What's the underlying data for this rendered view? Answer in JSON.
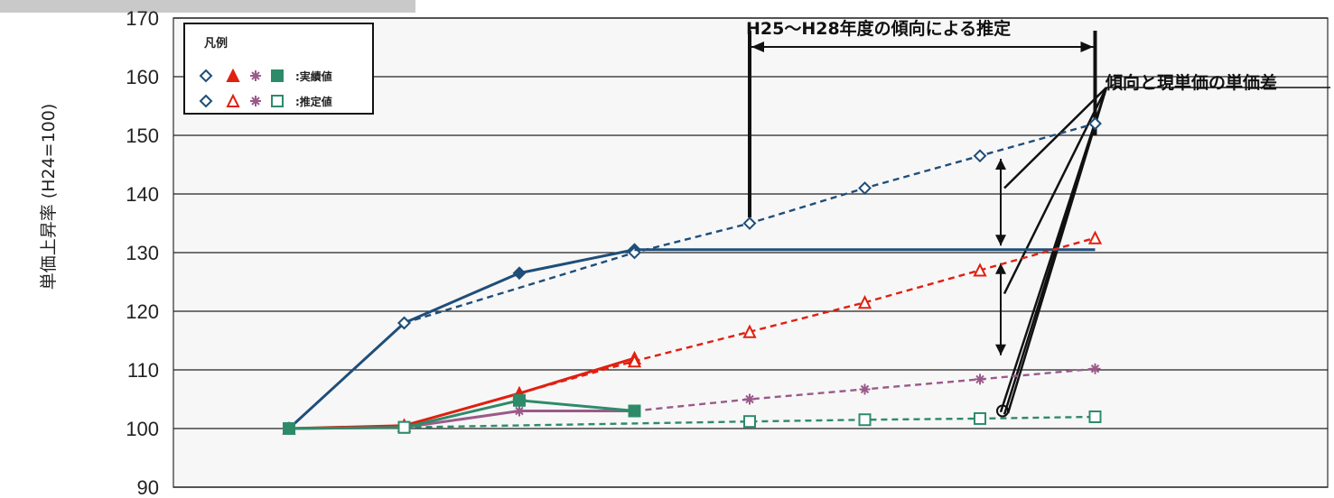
{
  "chart_data": {
    "type": "line",
    "ylabel": "単価上昇率 (H24=100)",
    "ylim": [
      90,
      170
    ],
    "yticks": [
      90,
      100,
      110,
      120,
      130,
      140,
      150,
      160,
      170
    ],
    "x": [
      0,
      1,
      2,
      3,
      4,
      5,
      6,
      7
    ],
    "grid": true,
    "legend": {
      "title": "凡例",
      "placement": "top-left",
      "rows": [
        {
          "text": ":実績値"
        },
        {
          "text": ":推定値"
        }
      ]
    },
    "series": [
      {
        "color": "#1f4e79",
        "style": "solid",
        "marker": "diamond-filled",
        "points": [
          [
            0,
            100
          ],
          [
            1,
            118
          ],
          [
            2,
            126.5
          ],
          [
            3,
            130.5
          ]
        ]
      },
      {
        "color": "#1f4e79",
        "style": "dashed",
        "marker": "diamond",
        "points": [
          [
            1,
            118
          ],
          [
            3,
            130
          ],
          [
            4,
            135
          ],
          [
            5,
            141
          ],
          [
            6,
            146.5
          ],
          [
            7,
            152
          ]
        ]
      },
      {
        "color": "#1f4e79",
        "style": "solid",
        "marker": "none",
        "points": [
          [
            3,
            130.5
          ],
          [
            7,
            130.5
          ]
        ]
      },
      {
        "color": "#e02010",
        "style": "solid",
        "marker": "triangle-filled",
        "points": [
          [
            0,
            100
          ],
          [
            1,
            100.5
          ],
          [
            2,
            106
          ],
          [
            3,
            112
          ]
        ]
      },
      {
        "color": "#e02010",
        "style": "dashed",
        "marker": "triangle",
        "points": [
          [
            1,
            100.5
          ],
          [
            3,
            111.5
          ],
          [
            4,
            116.5
          ],
          [
            5,
            121.5
          ],
          [
            6,
            127
          ],
          [
            7,
            132.5
          ]
        ]
      },
      {
        "color": "#9a5a8a",
        "style": "solid",
        "marker": "star",
        "points": [
          [
            0,
            100
          ],
          [
            1,
            100.2
          ],
          [
            2,
            103
          ],
          [
            3,
            103
          ]
        ]
      },
      {
        "color": "#9a5a8a",
        "style": "dashed",
        "marker": "star",
        "points": [
          [
            3,
            103
          ],
          [
            4,
            105
          ],
          [
            5,
            106.7
          ],
          [
            6,
            108.4
          ],
          [
            7,
            110.2
          ]
        ]
      },
      {
        "color": "#2e8b6a",
        "style": "solid",
        "marker": "square-filled",
        "points": [
          [
            0,
            100
          ],
          [
            1,
            100.2
          ],
          [
            2,
            104.8
          ],
          [
            3,
            103
          ]
        ]
      },
      {
        "color": "#2e8b6a",
        "style": "dashed",
        "marker": "square",
        "points": [
          [
            1,
            100.2
          ],
          [
            4,
            101.2
          ],
          [
            5,
            101.5
          ],
          [
            6,
            101.7
          ],
          [
            7,
            102
          ]
        ]
      }
    ],
    "annotations": {
      "range_label": "H25～H28年度の傾向による推定",
      "diff_label": "傾向と現単価の単価差"
    }
  }
}
